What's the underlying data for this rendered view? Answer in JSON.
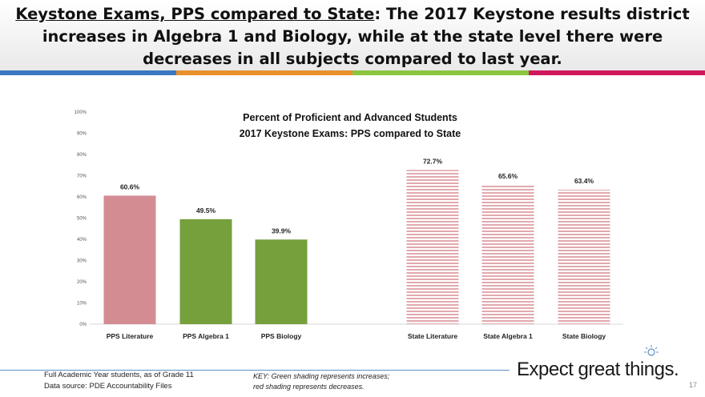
{
  "header": {
    "title_underlined": "Keystone Exams, PPS compared to State",
    "title_rest": ": The 2017 Keystone results district increases in Algebra 1 and Biology, while at the state level there were decreases in all subjects compared to last year.",
    "stripe_colors": [
      "#3a78c2",
      "#e8902b",
      "#8cc540",
      "#d0175c"
    ]
  },
  "chart_data": {
    "type": "bar",
    "title": [
      "Percent of Proficient and Advanced Students",
      "2017 Keystone Exams: PPS compared to State"
    ],
    "categories": [
      "PPS Literature",
      "PPS Algebra 1",
      "PPS Biology",
      "State Literature",
      "State Algebra 1",
      "State Biology"
    ],
    "values": [
      60.6,
      49.5,
      39.9,
      72.7,
      65.6,
      63.4
    ],
    "value_labels": [
      "60.6%",
      "49.5%",
      "39.9%",
      "72.7%",
      "65.6%",
      "63.4%"
    ],
    "bar_styles": [
      "red",
      "green",
      "green",
      "red-striped",
      "red-striped",
      "red-striped"
    ],
    "colors": {
      "red": "#d48c93",
      "green": "#76a03c",
      "red_stripe": "#e2a9ae"
    },
    "ylim": [
      0,
      100
    ],
    "yticks": [
      "0%",
      "10%",
      "20%",
      "30%",
      "40%",
      "50%",
      "60%",
      "70%",
      "80%",
      "90%",
      "100%"
    ],
    "xlabel": "",
    "ylabel": ""
  },
  "footer": {
    "note_line1": "Full Academic Year students, as of Grade 11",
    "note_line2": "Data source: PDE Accountability Files",
    "key_line1": "KEY: Green shading represents increases;",
    "key_line2": "red shading represents decreases.",
    "brand": "Expect great things.",
    "page_number": "17"
  }
}
